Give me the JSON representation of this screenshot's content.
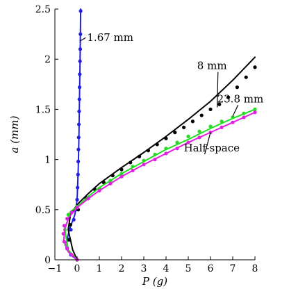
{
  "chart_data": {
    "type": "scatter",
    "xlabel": "P (g)",
    "ylabel": "a (mm)",
    "xlim": [
      -1,
      8
    ],
    "ylim": [
      0,
      2.5
    ],
    "xticks": [
      -1,
      0,
      1,
      2,
      3,
      4,
      5,
      6,
      7,
      8
    ],
    "yticks": [
      0,
      0.5,
      1,
      1.5,
      2,
      2.5
    ],
    "xtick_labels": [
      "−1",
      "0",
      "1",
      "2",
      "3",
      "4",
      "5",
      "6",
      "7",
      "8"
    ],
    "ytick_labels": [
      "0",
      "0.5",
      "1",
      "1.5",
      "2",
      "2.5"
    ],
    "grid": false,
    "legend": "none",
    "series": [
      {
        "name": "1.67 mm",
        "color": "#1f1fe0",
        "line_color": "#1f1fe0",
        "marker_color": "#1f1fe0",
        "line": {
          "x": [
            0.0,
            -0.3,
            -0.5,
            -0.35,
            -0.1,
            0.0,
            0.05,
            0.08,
            0.1,
            0.12,
            0.14,
            0.16
          ],
          "y": [
            0.0,
            0.05,
            0.15,
            0.3,
            0.45,
            0.6,
            0.9,
            1.2,
            1.5,
            1.8,
            2.1,
            2.5
          ]
        },
        "points": {
          "x": [
            0.0,
            -0.28,
            -0.45,
            -0.4,
            -0.28,
            -0.15,
            -0.05,
            0.0,
            0.02,
            0.04,
            0.05,
            0.06,
            0.07,
            0.08,
            0.09,
            0.1,
            0.11,
            0.12,
            0.13,
            0.14,
            0.15,
            0.16
          ],
          "y": [
            0.0,
            0.05,
            0.12,
            0.2,
            0.3,
            0.4,
            0.5,
            0.6,
            0.72,
            0.85,
            0.98,
            1.1,
            1.22,
            1.35,
            1.48,
            1.6,
            1.72,
            1.85,
            1.98,
            2.1,
            2.25,
            2.48
          ]
        }
      },
      {
        "name": "8 mm",
        "color": "#000000",
        "line_color": "#000000",
        "marker_color": "#000000",
        "line": {
          "x": [
            0.0,
            -0.2,
            -0.4,
            -0.3,
            0.0,
            0.5,
            1.0,
            2.0,
            3.0,
            4.0,
            5.0,
            6.0,
            7.0,
            8.0
          ],
          "y": [
            0.0,
            0.1,
            0.3,
            0.45,
            0.55,
            0.66,
            0.76,
            0.92,
            1.07,
            1.23,
            1.4,
            1.58,
            1.79,
            2.02
          ]
        },
        "points": {
          "x": [
            0.0,
            -0.35,
            -0.3,
            0.05,
            0.4,
            0.8,
            1.2,
            1.6,
            2.0,
            2.4,
            2.8,
            3.2,
            3.6,
            4.0,
            4.4,
            4.8,
            5.2,
            5.6,
            6.0,
            6.4,
            6.8,
            7.2,
            7.6,
            8.0
          ],
          "y": [
            0.0,
            0.2,
            0.35,
            0.5,
            0.62,
            0.7,
            0.77,
            0.84,
            0.9,
            0.97,
            1.03,
            1.09,
            1.15,
            1.21,
            1.27,
            1.32,
            1.38,
            1.44,
            1.5,
            1.55,
            1.62,
            1.72,
            1.82,
            1.92
          ]
        }
      },
      {
        "name": "23.8 mm",
        "color": "#22dd22",
        "line_color": "#22dd22",
        "marker_color": "#22dd22",
        "line": {
          "x": [
            0.0,
            -0.4,
            -0.55,
            -0.3,
            0.0,
            0.5,
            1.0,
            2.0,
            3.0,
            4.0,
            5.0,
            6.0,
            7.0,
            8.0
          ],
          "y": [
            0.0,
            0.1,
            0.3,
            0.48,
            0.53,
            0.63,
            0.72,
            0.86,
            0.98,
            1.1,
            1.2,
            1.31,
            1.41,
            1.5
          ]
        },
        "points": {
          "x": [
            0.0,
            -0.5,
            -0.55,
            -0.4,
            0.0,
            0.5,
            1.0,
            1.5,
            2.0,
            2.5,
            3.0,
            3.5,
            4.0,
            4.5,
            5.0,
            5.5,
            6.0,
            6.5,
            7.0,
            7.5,
            8.0
          ],
          "y": [
            0.0,
            0.15,
            0.3,
            0.45,
            0.53,
            0.62,
            0.71,
            0.79,
            0.86,
            0.93,
            0.99,
            1.05,
            1.11,
            1.17,
            1.23,
            1.28,
            1.33,
            1.38,
            1.42,
            1.46,
            1.5
          ]
        }
      },
      {
        "name": "Half-space",
        "color": "#e020e0",
        "line_color": "#e020e0",
        "marker_color": "#e020e0",
        "line": {
          "x": [
            0.0,
            -0.4,
            -0.6,
            -0.55,
            -0.35,
            0.0,
            0.5,
            1.0,
            2.0,
            3.0,
            4.0,
            5.0,
            6.0,
            7.0,
            8.0
          ],
          "y": [
            0.0,
            0.08,
            0.2,
            0.32,
            0.43,
            0.52,
            0.61,
            0.69,
            0.83,
            0.95,
            1.06,
            1.17,
            1.27,
            1.37,
            1.47
          ]
        },
        "points": {
          "x": [
            0.0,
            -0.25,
            -0.45,
            -0.58,
            -0.62,
            -0.58,
            -0.45,
            -0.25,
            0.0,
            0.5,
            1.0,
            1.5,
            2.0,
            2.5,
            3.0,
            3.5,
            4.0,
            4.5,
            5.0,
            5.5,
            6.0,
            6.5,
            7.0,
            7.5,
            8.0
          ],
          "y": [
            0.0,
            0.05,
            0.11,
            0.18,
            0.26,
            0.34,
            0.41,
            0.47,
            0.52,
            0.61,
            0.69,
            0.76,
            0.83,
            0.89,
            0.95,
            1.0,
            1.06,
            1.11,
            1.17,
            1.22,
            1.27,
            1.32,
            1.37,
            1.42,
            1.47
          ]
        }
      }
    ],
    "annotations": [
      {
        "text": "1.67 mm",
        "series": "1.67 mm",
        "x": 0.45,
        "y": 2.18,
        "arrow_to_x": 0.12,
        "arrow_to_y": 2.18
      },
      {
        "text": "8 mm",
        "series": "8 mm",
        "x": 5.4,
        "y": 1.9,
        "arrow_to_x": 6.3,
        "arrow_to_y": 1.52
      },
      {
        "text": "23.8 mm",
        "series": "23.8 mm",
        "x": 6.3,
        "y": 1.57,
        "arrow_to_x": 7.0,
        "arrow_to_y": 1.43
      },
      {
        "text": "Half-space",
        "series": "Half-space",
        "x": 4.8,
        "y": 1.08,
        "arrow_to_x": 6.0,
        "arrow_to_y": 1.27
      }
    ]
  }
}
